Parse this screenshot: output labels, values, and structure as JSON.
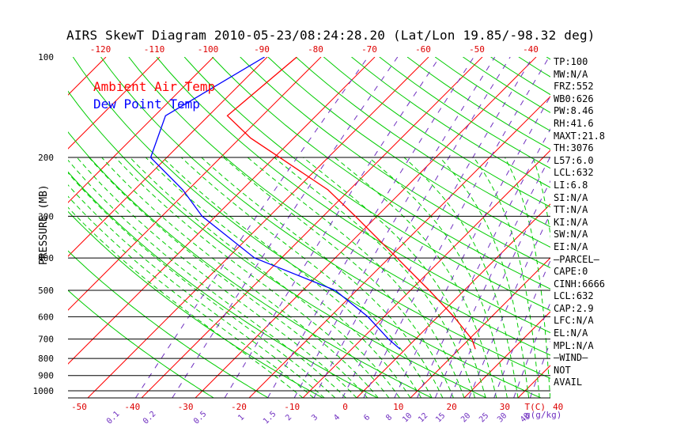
{
  "title": "AIRS SkewT Diagram 2010-05-23/08:24:28.20 (Lat/Lon 19.85/-98.32 deg)",
  "legend": {
    "air": "Ambient Air Temp",
    "dew": "Dew Point Temp"
  },
  "colors": {
    "air": "#ff0000",
    "dew": "#0000ff",
    "isotherm": "#ff0000",
    "adiabat": "#00cc00",
    "mixing": "#7030c0",
    "isobar": "#000000"
  },
  "stats": [
    "TP:100",
    "MW:N/A",
    "FRZ:552",
    "WB0:626",
    "PW:8.46",
    "RH:41.6",
    "MAXT:21.8",
    "TH:3076",
    "L57:6.0",
    "LCL:632",
    "LI:6.8",
    "SI:N/A",
    "TT:N/A",
    "KI:N/A",
    "SW:N/A",
    "EI:N/A",
    "—PARCEL—",
    "CAPE:0",
    "CINH:6666",
    "LCL:632",
    "CAP:2.9",
    "LFC:N/A",
    "EL:N/A",
    "MPL:N/A",
    "—WIND—",
    "NOT",
    "AVAIL"
  ],
  "chart_data": {
    "type": "line",
    "title": "AIRS SkewT Diagram 2010-05-23/08:24:28.20 (Lat/Lon 19.85/-98.32 deg)",
    "ylabel": "PRESSURE (MB)",
    "xlabel": "T(C)",
    "mixing_label": "g(g/kg)",
    "y_scale": "log",
    "y_ticks": [
      100,
      200,
      300,
      400,
      500,
      600,
      700,
      800,
      900,
      1000
    ],
    "top_ticks": [
      -120,
      -110,
      -100,
      -90,
      -80,
      -70,
      -60,
      -50,
      -40
    ],
    "bottom_ticks": [
      -50,
      -40,
      -30,
      -20,
      -10,
      0,
      10,
      20,
      30,
      40
    ],
    "mixing_ticks": [
      "0.1",
      "0.2",
      "0.5",
      "1",
      "1.5",
      "2",
      "3",
      "4",
      "6",
      "8",
      "10",
      "12",
      "15",
      "20",
      "25",
      "30",
      "40"
    ],
    "series": [
      {
        "name": "Ambient Air Temp",
        "points": [
          {
            "p": 100,
            "t": -74.5
          },
          {
            "p": 150,
            "t": -76.5
          },
          {
            "p": 175,
            "t": -68
          },
          {
            "p": 200,
            "t": -59
          },
          {
            "p": 250,
            "t": -44
          },
          {
            "p": 300,
            "t": -34
          },
          {
            "p": 400,
            "t": -18.5
          },
          {
            "p": 500,
            "t": -6.5
          },
          {
            "p": 600,
            "t": 3
          },
          {
            "p": 700,
            "t": 10.5
          },
          {
            "p": 750,
            "t": 13
          }
        ]
      },
      {
        "name": "Dew Point Temp",
        "points": [
          {
            "p": 100,
            "t": -80.5
          },
          {
            "p": 150,
            "t": -88
          },
          {
            "p": 200,
            "t": -83
          },
          {
            "p": 250,
            "t": -71
          },
          {
            "p": 300,
            "t": -62.5
          },
          {
            "p": 400,
            "t": -45
          },
          {
            "p": 500,
            "t": -24
          },
          {
            "p": 600,
            "t": -13
          },
          {
            "p": 700,
            "t": -5
          },
          {
            "p": 750,
            "t": -1
          }
        ]
      }
    ]
  }
}
